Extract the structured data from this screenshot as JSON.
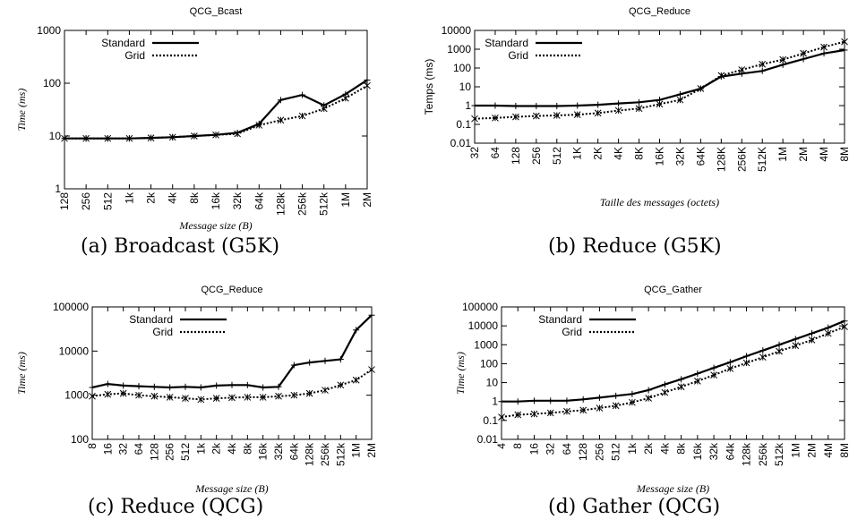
{
  "chart_data": [
    {
      "type": "line",
      "title": "QCG_Bcast",
      "xlabel": "Message size (B)",
      "ylabel": "Time (ms)",
      "caption": "(a) Broadcast (G5K)",
      "yscale": "log",
      "ylim": [
        1,
        1000
      ],
      "yticks": [
        "1",
        "10",
        "100",
        "1000"
      ],
      "legend_position": "top-left",
      "categories": [
        "128",
        "256",
        "512",
        "1k",
        "2k",
        "4k",
        "8k",
        "16k",
        "32k",
        "64k",
        "128k",
        "256k",
        "512k",
        "1M",
        "2M"
      ],
      "series": [
        {
          "name": "Standard",
          "style": "solid",
          "values": [
            9,
            9,
            9,
            9,
            9.2,
            9.5,
            10,
            10.5,
            11.5,
            17,
            48,
            60,
            38,
            62,
            115
          ]
        },
        {
          "name": "Grid",
          "style": "dotted",
          "values": [
            9,
            9,
            9,
            9,
            9.2,
            9.5,
            10,
            10.5,
            11,
            16,
            20,
            24,
            33,
            52,
            90
          ]
        }
      ]
    },
    {
      "type": "line",
      "title": "QCG_Reduce",
      "xlabel": "Taille des messages (octets)",
      "ylabel": "Temps (ms)",
      "caption": "(b) Reduce (G5K)",
      "yscale": "log",
      "ylim": [
        0.01,
        10000
      ],
      "yticks": [
        "0.01",
        "0.1",
        "1",
        "10",
        "100",
        "1000",
        "10000"
      ],
      "legend_position": "top-left",
      "categories": [
        "32",
        "64",
        "128",
        "256",
        "512",
        "1K",
        "2K",
        "4K",
        "8K",
        "16K",
        "32K",
        "64K",
        "128K",
        "256K",
        "512K",
        "1M",
        "2M",
        "4M",
        "8M"
      ],
      "series": [
        {
          "name": "Standard",
          "style": "solid",
          "values": [
            1,
            1,
            0.95,
            0.95,
            0.95,
            1,
            1.1,
            1.3,
            1.5,
            2,
            4,
            8,
            35,
            50,
            70,
            150,
            300,
            600,
            900
          ]
        },
        {
          "name": "Grid",
          "style": "dotted",
          "values": [
            0.2,
            0.22,
            0.25,
            0.28,
            0.3,
            0.33,
            0.4,
            0.55,
            0.7,
            1.2,
            2,
            8,
            40,
            80,
            160,
            280,
            600,
            1300,
            2500
          ]
        }
      ]
    },
    {
      "type": "line",
      "title": "QCG_Reduce",
      "xlabel": "Message size (B)",
      "ylabel": "Time (ms)",
      "caption": "(c) Reduce (QCG)",
      "yscale": "log",
      "ylim": [
        100,
        100000
      ],
      "yticks": [
        "100",
        "1000",
        "10000",
        "100000"
      ],
      "legend_position": "top-left",
      "categories": [
        "8",
        "16",
        "32",
        "64",
        "128",
        "256",
        "512",
        "1k",
        "2k",
        "4k",
        "8k",
        "16k",
        "32k",
        "64k",
        "128k",
        "256k",
        "512k",
        "1M",
        "2M"
      ],
      "series": [
        {
          "name": "Standard",
          "style": "solid",
          "values": [
            1500,
            1800,
            1650,
            1600,
            1550,
            1500,
            1550,
            1500,
            1650,
            1700,
            1700,
            1500,
            1550,
            4800,
            5500,
            6000,
            6500,
            30000,
            65000
          ]
        },
        {
          "name": "Grid",
          "style": "dotted",
          "values": [
            950,
            1050,
            1100,
            1000,
            950,
            900,
            850,
            800,
            850,
            880,
            900,
            900,
            950,
            1000,
            1100,
            1300,
            1700,
            2200,
            3800
          ]
        }
      ]
    },
    {
      "type": "line",
      "title": "QCG_Gather",
      "xlabel": "Message size (B)",
      "ylabel": "Time (ms)",
      "caption": "(d) Gather (QCG)",
      "yscale": "log",
      "ylim": [
        0.01,
        100000
      ],
      "yticks": [
        "0.01",
        "0.1",
        "1",
        "10",
        "100",
        "1000",
        "10000",
        "100000"
      ],
      "legend_position": "top-left",
      "categories": [
        "4",
        "8",
        "16",
        "32",
        "64",
        "128",
        "256",
        "512",
        "1k",
        "2k",
        "4k",
        "8k",
        "16k",
        "32k",
        "64k",
        "128k",
        "256k",
        "512k",
        "1M",
        "2M",
        "4M",
        "8M"
      ],
      "series": [
        {
          "name": "Standard",
          "style": "solid",
          "values": [
            1,
            1,
            1.1,
            1.1,
            1.1,
            1.3,
            1.6,
            2,
            2.5,
            4,
            8,
            15,
            30,
            60,
            120,
            250,
            500,
            1000,
            2000,
            4000,
            8000,
            18000
          ]
        },
        {
          "name": "Grid",
          "style": "dotted",
          "values": [
            0.15,
            0.2,
            0.22,
            0.25,
            0.3,
            0.35,
            0.45,
            0.6,
            0.9,
            1.5,
            3,
            6,
            12,
            25,
            55,
            110,
            220,
            450,
            900,
            1800,
            4000,
            9000
          ]
        }
      ]
    }
  ]
}
